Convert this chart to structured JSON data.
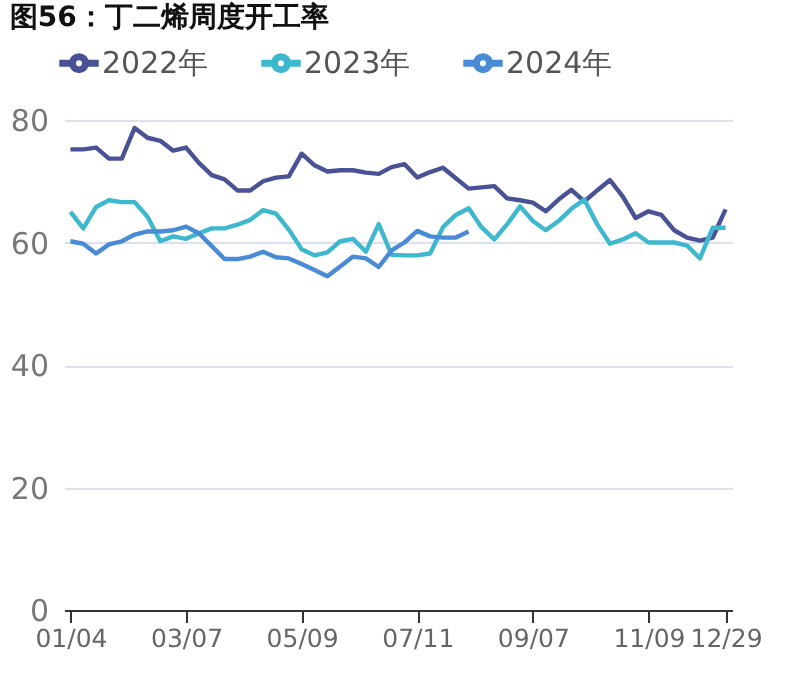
{
  "chart_data": {
    "type": "line",
    "title": "图56：丁二烯周度开工率",
    "categories": [
      "01/04",
      null,
      null,
      null,
      null,
      null,
      null,
      null,
      null,
      "03/07",
      null,
      null,
      null,
      null,
      null,
      null,
      null,
      null,
      "05/09",
      null,
      null,
      null,
      null,
      null,
      null,
      null,
      null,
      "07/11",
      null,
      null,
      null,
      null,
      null,
      null,
      null,
      null,
      "09/07",
      null,
      null,
      null,
      null,
      null,
      null,
      null,
      null,
      "11/09",
      null,
      null,
      null,
      null,
      null,
      "12/29"
    ],
    "series": [
      {
        "name": "2022年",
        "color": "#4a5296",
        "values": [
          75.2,
          75.2,
          75.5,
          73.7,
          73.7,
          78.7,
          77.1,
          76.6,
          75,
          75.5,
          73,
          71,
          70.3,
          68.5,
          68.5,
          70,
          70.6,
          70.8,
          74.5,
          72.6,
          71.6,
          71.8,
          71.8,
          71.4,
          71.2,
          72.3,
          72.8,
          70.6,
          71.5,
          72.2,
          70.5,
          68.8,
          69,
          69.2,
          67.2,
          66.9,
          66.5,
          65.1,
          67,
          68.6,
          66.7,
          68.5,
          70.2,
          67.5,
          64,
          65.1,
          64.5,
          62,
          60.8,
          60.3,
          60.8,
          65.4
        ]
      },
      {
        "name": "2023年",
        "color": "#3db8cf",
        "values": [
          65,
          62.3,
          65.8,
          66.9,
          66.6,
          66.6,
          64.2,
          60.2,
          61,
          60.6,
          61.5,
          62.3,
          62.3,
          62.9,
          63.7,
          65.3,
          64.7,
          62.1,
          58.9,
          57.9,
          58.4,
          60.2,
          60.6,
          58.5,
          63,
          58,
          57.9,
          57.9,
          58.2,
          62.5,
          64.5,
          65.6,
          62.5,
          60.5,
          63,
          65.9,
          63.5,
          62,
          63.5,
          65.5,
          67,
          63,
          59.8,
          60.5,
          61.5,
          60,
          60,
          60,
          59.5,
          57.4,
          62.4,
          62.4
        ]
      },
      {
        "name": "2024年",
        "color": "#4a8bd6",
        "values": [
          60.2,
          59.8,
          58.2,
          59.7,
          60.2,
          61.3,
          61.8,
          61.8,
          62,
          62.6,
          61.5,
          59.4,
          57.3,
          57.3,
          57.7,
          58.5,
          57.6,
          57.4,
          56.5,
          55.5,
          54.5,
          56.1,
          57.7,
          57.4,
          56,
          58.7,
          60,
          61.9,
          61,
          60.8,
          60.8,
          61.8,
          null,
          null,
          null,
          null,
          null,
          null,
          null,
          null,
          null,
          null,
          null,
          null,
          null,
          null,
          null,
          null,
          null,
          null,
          null,
          null
        ]
      }
    ],
    "ylim": [
      0,
      80
    ],
    "yticks": [
      0,
      20,
      40,
      60,
      80
    ],
    "grid": "y",
    "legend": "top",
    "marker": "none",
    "line_style": "solid"
  }
}
